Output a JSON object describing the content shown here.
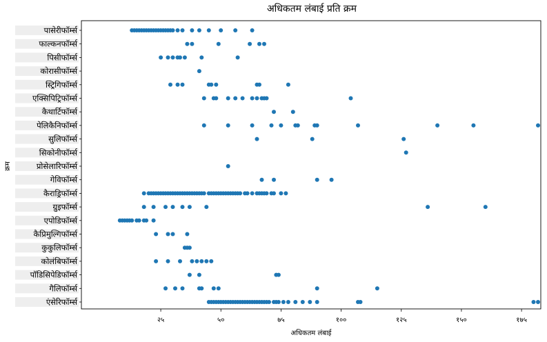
{
  "chart_data": {
    "type": "scatter",
    "title": "अधिकतम लंबाई प्रति क्रम",
    "xlabel": "अधिकतम लंबाई",
    "ylabel": "क्रम",
    "xlim": [
      -8,
      183
    ],
    "xticks": [
      25,
      50,
      75,
      100,
      125,
      150,
      175
    ],
    "xtick_labels": [
      "२५",
      "५०",
      "७५",
      "१००",
      "१२५",
      "१५०",
      "१७५"
    ],
    "grid": false,
    "point_color": "#1f77b4",
    "categories": [
      "पासेरीफॉर्म्स",
      "फाल्कनफॉर्म्स",
      "पिसीफॉर्म्स",
      "कोरासीफॉर्म्स",
      "स्ट्रिगिफॉर्म्स",
      "एक्सिपिट्रिफॉर्म्स",
      "कैथार्टिफॉर्म्स",
      "पेलिकैनिफॉर्म्स",
      "सुलिफॉर्म्स",
      "सिकोनीफॉर्म्स",
      "प्रोसेलारिफॉर्म्स",
      "गेविफॉर्म्स",
      "कैराड्रिफॉर्म्स",
      "ग्रुइफॉर्म्स",
      "एपोडिफॉर्म्स",
      "कैप्रिमुल्गिफॉर्म्स",
      "कुकुलिफॉर्म्स",
      "कोलंबिफॉर्म्स",
      "पॉडिसिपेडिफॉर्म्स",
      "गैलिफॉर्म्स",
      "एंसेरिफॉर्म्स"
    ],
    "series": [
      {
        "category": "पासेरीफॉर्म्स",
        "x": [
          13,
          14,
          15,
          16,
          17,
          18,
          19,
          20,
          21,
          22,
          23,
          24,
          25,
          26,
          27,
          28,
          29,
          30,
          32,
          34,
          38,
          41,
          45,
          50,
          56,
          63
        ]
      },
      {
        "category": "फाल्कनफॉर्म्स",
        "x": [
          36,
          38,
          49,
          62,
          66,
          68
        ]
      },
      {
        "category": "पिसीफॉर्म्स",
        "x": [
          25,
          28,
          30,
          32,
          33,
          35,
          42,
          57
        ]
      },
      {
        "category": "कोरासीफॉर्म्स",
        "x": [
          41
        ]
      },
      {
        "category": "स्ट्रिगिफॉर्म्स",
        "x": [
          29,
          32,
          34,
          45,
          46,
          48,
          65,
          66,
          78
        ]
      },
      {
        "category": "एक्सिपिट्रिफॉर्म्स",
        "x": [
          43,
          47,
          48,
          53,
          56,
          59,
          63,
          65,
          67,
          68,
          69,
          104
        ]
      },
      {
        "category": "कैथार्टिफॉर्म्स",
        "x": [
          72,
          80
        ]
      },
      {
        "category": "पेलिकैनिफॉर्म्स",
        "x": [
          43,
          53,
          63,
          71,
          75,
          81,
          82,
          89,
          90,
          107,
          140,
          155,
          183
        ]
      },
      {
        "category": "सुलिफॉर्म्स",
        "x": [
          65,
          88,
          126
        ]
      },
      {
        "category": "सिकोनीफॉर्म्स",
        "x": [
          127
        ]
      },
      {
        "category": "प्रोसेलारिफॉर्म्स",
        "x": [
          53
        ]
      },
      {
        "category": "गेविफॉर्म्स",
        "x": [
          67,
          72,
          90,
          96
        ]
      },
      {
        "category": "कैराड्रिफॉर्म्स",
        "x": [
          18,
          20,
          21,
          22,
          23,
          24,
          25,
          26,
          27,
          28,
          29,
          30,
          31,
          32,
          33,
          34,
          35,
          36,
          37,
          38,
          39,
          40,
          41,
          42,
          43,
          45,
          46,
          47,
          48,
          49,
          50,
          51,
          52,
          53,
          54,
          55,
          56,
          57,
          58,
          60,
          61,
          63,
          65,
          66,
          67,
          68,
          69,
          71,
          72,
          75,
          77
        ]
      },
      {
        "category": "ग्रुइफॉर्म्स",
        "x": [
          18,
          22,
          27,
          30,
          34,
          37,
          44,
          136,
          160
        ]
      },
      {
        "category": "एपोडिफॉर्म्स",
        "x": [
          8,
          9,
          10,
          11,
          12,
          13,
          15,
          16,
          18,
          19,
          22
        ]
      },
      {
        "category": "कैप्रिमुल्गिफॉर्म्स",
        "x": [
          23,
          28,
          30,
          36
        ]
      },
      {
        "category": "कुकुलिफॉर्म्स",
        "x": [
          35,
          36,
          37
        ]
      },
      {
        "category": "कोलंबिफॉर्म्स",
        "x": [
          23,
          28,
          33,
          38,
          40,
          42,
          44,
          46
        ]
      },
      {
        "category": "पॉडिसिपेडिफॉर्म्स",
        "x": [
          37,
          41,
          73,
          74
        ]
      },
      {
        "category": "गैलिफॉर्म्स",
        "x": [
          27,
          31,
          34,
          41,
          42,
          47,
          49,
          90,
          115
        ]
      },
      {
        "category": "एंसेरिफॉर्म्स",
        "x": [
          45,
          46,
          47,
          48,
          49,
          50,
          51,
          52,
          53,
          54,
          55,
          56,
          57,
          58,
          59,
          60,
          61,
          62,
          63,
          64,
          65,
          66,
          67,
          68,
          69,
          70,
          72,
          73,
          74,
          76,
          78,
          81,
          84,
          87,
          90,
          107,
          108,
          180,
          187
        ]
      }
    ]
  }
}
